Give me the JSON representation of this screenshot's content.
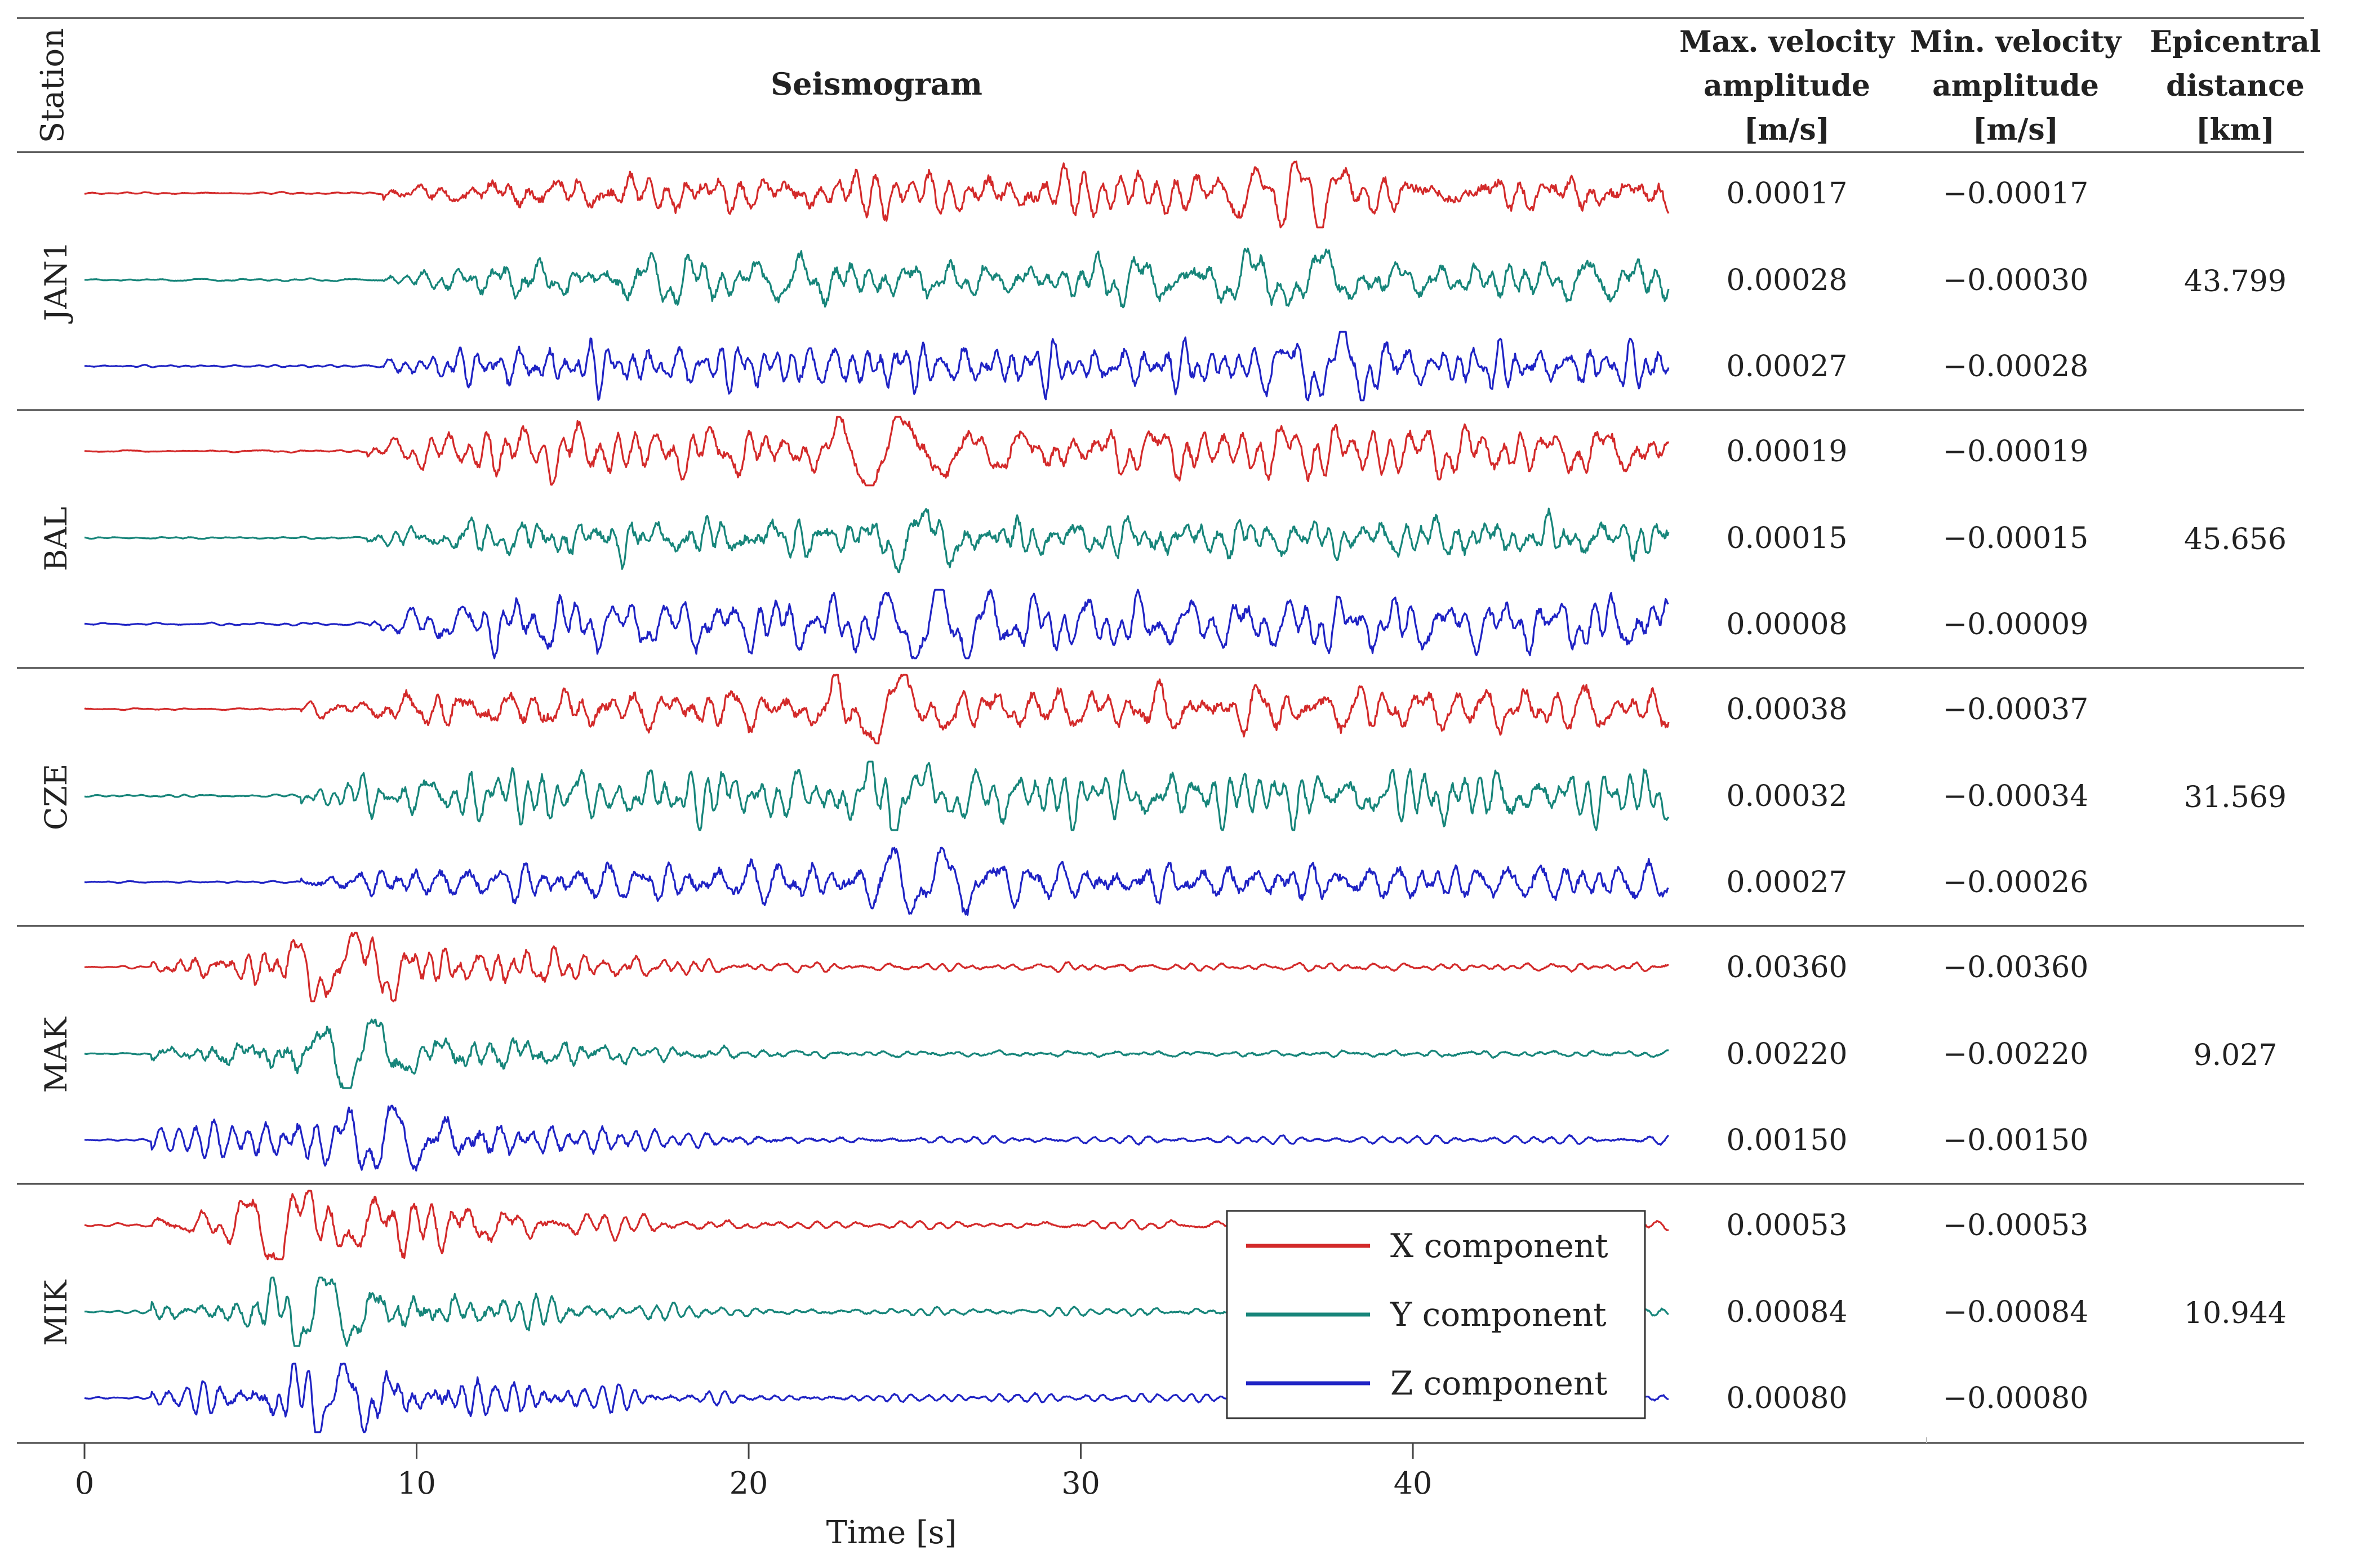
{
  "chart_data": {
    "type": "line",
    "title": "Seismogram",
    "xlabel": "Time [s]",
    "xlim": [
      0,
      47.7
    ],
    "xticks": [
      0,
      10,
      20,
      30,
      40
    ],
    "columns": {
      "station": "Station",
      "seismogram": "Seismogram",
      "max": [
        "Max. velocity",
        "amplitude",
        "[m/s]"
      ],
      "min": [
        "Min. velocity",
        "amplitude",
        "[m/s]"
      ],
      "dist": [
        "Epicentral",
        "distance",
        "[km]"
      ]
    },
    "legend": {
      "placement": "lower-center",
      "entries": [
        {
          "label": "X component",
          "color": "#d32a2a"
        },
        {
          "label": "Y component",
          "color": "#17857a"
        },
        {
          "label": "Z component",
          "color": "#1f23c4"
        }
      ]
    },
    "stations": [
      {
        "name": "JAN1",
        "distance": "43.799",
        "onset_s": 9.0,
        "peak_s": 37.0,
        "traces": [
          {
            "component": "X",
            "max": "0.00017",
            "min": "−0.00017"
          },
          {
            "component": "Y",
            "max": "0.00028",
            "min": "−0.00030"
          },
          {
            "component": "Z",
            "max": "0.00027",
            "min": "−0.00028"
          }
        ]
      },
      {
        "name": "BAL",
        "distance": "45.656",
        "onset_s": 8.5,
        "peak_s": 25.0,
        "traces": [
          {
            "component": "X",
            "max": "0.00019",
            "min": "−0.00019"
          },
          {
            "component": "Y",
            "max": "0.00015",
            "min": "−0.00015"
          },
          {
            "component": "Z",
            "max": "0.00008",
            "min": "−0.00009"
          }
        ]
      },
      {
        "name": "CZE",
        "distance": "31.569",
        "onset_s": 6.5,
        "peak_s": 25.0,
        "traces": [
          {
            "component": "X",
            "max": "0.00038",
            "min": "−0.00037"
          },
          {
            "component": "Y",
            "max": "0.00032",
            "min": "−0.00034"
          },
          {
            "component": "Z",
            "max": "0.00027",
            "min": "−0.00026"
          }
        ]
      },
      {
        "name": "MAK",
        "distance": "9.027",
        "onset_s": 2.0,
        "peak_s": 8.5,
        "traces": [
          {
            "component": "X",
            "max": "0.00360",
            "min": "−0.00360"
          },
          {
            "component": "Y",
            "max": "0.00220",
            "min": "−0.00220"
          },
          {
            "component": "Z",
            "max": "0.00150",
            "min": "−0.00150"
          }
        ]
      },
      {
        "name": "MIK",
        "distance": "10.944",
        "onset_s": 2.0,
        "peak_s": 7.0,
        "traces": [
          {
            "component": "X",
            "max": "0.00053",
            "min": "−0.00053"
          },
          {
            "component": "Y",
            "max": "0.00084",
            "min": "−0.00084"
          },
          {
            "component": "Z",
            "max": "0.00080",
            "min": "−0.00080"
          }
        ]
      }
    ]
  }
}
